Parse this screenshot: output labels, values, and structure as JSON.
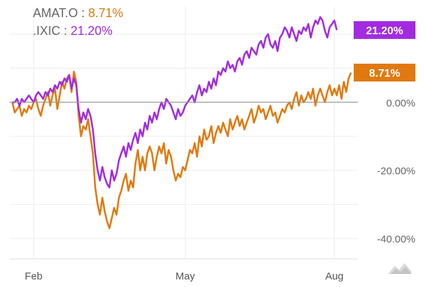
{
  "legend": {
    "items": [
      {
        "ticker": "AMAT.O",
        "sep": " : ",
        "value": "8.71%",
        "color": "#e07a10"
      },
      {
        "ticker": ".IXIC",
        "sep": " : ",
        "value": "21.20%",
        "color": "#a22be0"
      }
    ]
  },
  "chart_data": {
    "type": "line",
    "x_ticks": [
      "Feb",
      "May",
      "Aug"
    ],
    "y_ticks": [
      "0.00%",
      "-20.00%",
      "-40.00%"
    ],
    "y_tick_values": [
      0,
      -20,
      -40
    ],
    "ylim": [
      -46,
      26
    ],
    "baseline": 0,
    "grid": true,
    "x_ticks_at": [
      9,
      73,
      136
    ],
    "series": [
      {
        "name": "AMAT.O",
        "color": "#e07a10",
        "end_label": "8.71%",
        "values": [
          0,
          -3,
          -2,
          -1,
          -4,
          -2,
          -3,
          -1,
          -2,
          0,
          1,
          -2,
          -4,
          -1,
          1,
          3,
          -1,
          2,
          4,
          -2,
          2,
          6,
          4,
          7,
          8,
          3,
          9,
          6,
          -4,
          -10,
          -7,
          -8,
          -5,
          -10,
          -15,
          -25,
          -30,
          -33,
          -28,
          -32,
          -35,
          -37,
          -34,
          -31,
          -33,
          -28,
          -26,
          -23,
          -21,
          -26,
          -23,
          -25,
          -18,
          -14,
          -20,
          -16,
          -20,
          -15,
          -13,
          -15,
          -20,
          -16,
          -13,
          -15,
          -12,
          -18,
          -14,
          -16,
          -20,
          -23,
          -21,
          -22,
          -19,
          -20,
          -17,
          -14,
          -15,
          -12,
          -16,
          -10,
          -13,
          -8,
          -11,
          -10,
          -7,
          -12,
          -9,
          -7,
          -9,
          -6,
          -8,
          -10,
          -5,
          -8,
          -6,
          -4,
          -7,
          -5,
          -8,
          -6,
          -4,
          -2,
          -6,
          -4,
          -1,
          -3,
          -2,
          -5,
          -3,
          -1,
          -4,
          -3,
          -6,
          -4,
          -2,
          -3,
          -1,
          0,
          -2,
          1,
          3,
          -1,
          2,
          0,
          1,
          3,
          1,
          4,
          -1,
          2,
          4,
          2,
          0,
          3,
          5,
          2,
          4,
          2,
          5,
          1,
          6,
          3,
          7,
          8.71
        ]
      },
      {
        "name": ".IXIC",
        "color": "#a22be0",
        "end_label": "21.20%",
        "values": [
          0,
          0,
          1,
          -1,
          1,
          0,
          1,
          2,
          1,
          0,
          2,
          3,
          2,
          1,
          3,
          2,
          4,
          3,
          5,
          4,
          6,
          5,
          7,
          6,
          8,
          4,
          7,
          5,
          -2,
          -6,
          -3,
          -5,
          -2,
          -4,
          -8,
          -15,
          -20,
          -23,
          -19,
          -22,
          -24,
          -25,
          -20,
          -23,
          -21,
          -17,
          -15,
          -13,
          -16,
          -12,
          -14,
          -11,
          -9,
          -12,
          -8,
          -10,
          -6,
          -8,
          -4,
          -6,
          -3,
          -5,
          -2,
          0,
          -2,
          1,
          0,
          -1,
          -3,
          -5,
          -2,
          -4,
          -3,
          -1,
          0,
          1,
          2,
          0,
          3,
          5,
          2,
          4,
          3,
          6,
          4,
          7,
          5,
          9,
          8,
          10,
          9,
          12,
          10,
          11,
          9,
          12,
          13,
          11,
          14,
          15,
          13,
          16,
          15,
          14,
          17,
          18,
          16,
          19,
          20,
          17,
          16,
          18,
          15,
          19,
          20,
          22,
          21,
          19,
          22,
          20,
          18,
          21,
          20,
          22,
          21,
          23,
          19,
          22,
          24,
          23,
          25,
          24,
          21,
          19,
          22,
          23,
          24,
          21.2
        ]
      }
    ]
  },
  "watermark": {
    "icon": "chart-logo-icon"
  }
}
